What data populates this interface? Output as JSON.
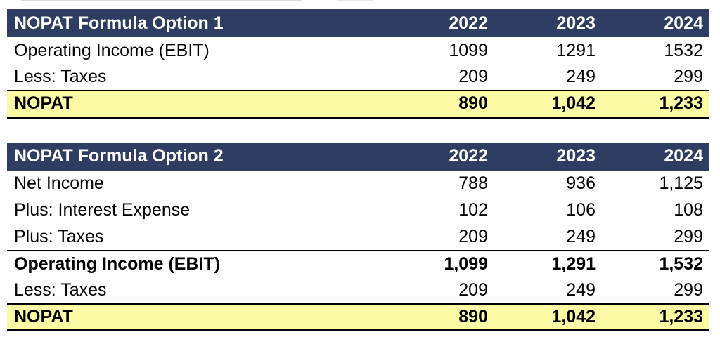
{
  "colors": {
    "header_bg": "#2e3d62",
    "header_text": "#ffffff",
    "total_row_bg": "#fbfba6",
    "body_text": "#000000"
  },
  "tables": [
    {
      "title": "NOPAT Formula Option 1",
      "years": [
        "2022",
        "2023",
        "2024"
      ],
      "rows": [
        {
          "label": "Operating Income (EBIT)",
          "values": [
            "1099",
            "1291",
            "1532"
          ]
        },
        {
          "label": "Less: Taxes",
          "values": [
            "209",
            "249",
            "299"
          ]
        },
        {
          "label": "NOPAT",
          "values": [
            "890",
            "1,042",
            "1,233"
          ]
        }
      ]
    },
    {
      "title": "NOPAT Formula Option 2",
      "years": [
        "2022",
        "2023",
        "2024"
      ],
      "rows": [
        {
          "label": "Net Income",
          "values": [
            "788",
            "936",
            "1,125"
          ]
        },
        {
          "label": "Plus: Interest Expense",
          "values": [
            "102",
            "106",
            "108"
          ]
        },
        {
          "label": "Plus: Taxes",
          "values": [
            "209",
            "249",
            "299"
          ]
        },
        {
          "label": "Operating Income (EBIT)",
          "values": [
            "1,099",
            "1,291",
            "1,532"
          ]
        },
        {
          "label": "Less: Taxes",
          "values": [
            "209",
            "249",
            "299"
          ]
        },
        {
          "label": "NOPAT",
          "values": [
            "890",
            "1,042",
            "1,233"
          ]
        }
      ]
    }
  ]
}
